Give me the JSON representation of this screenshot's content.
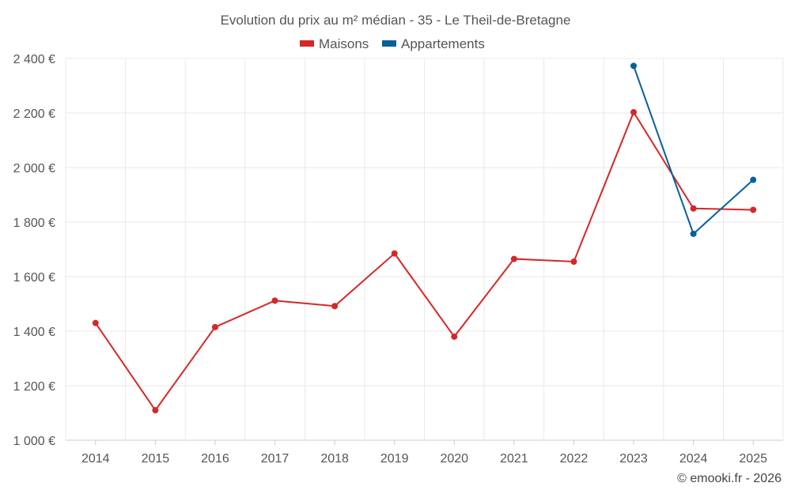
{
  "chart_data": {
    "type": "line",
    "title": "Evolution du prix au m² médian - 35 - Le Theil-de-Bretagne",
    "x": [
      "2014",
      "2015",
      "2016",
      "2017",
      "2018",
      "2019",
      "2020",
      "2021",
      "2022",
      "2023",
      "2024",
      "2025"
    ],
    "y_ticks": [
      "1 000 €",
      "1 200 €",
      "1 400 €",
      "1 600 €",
      "1 800 €",
      "2 000 €",
      "2 200 €",
      "2 400 €"
    ],
    "y_tick_values": [
      1000,
      1200,
      1400,
      1600,
      1800,
      2000,
      2200,
      2400
    ],
    "ylim": [
      1000,
      2400
    ],
    "grid": true,
    "legend_position": "top-center",
    "series": [
      {
        "name": "Maisons",
        "color": "#d62728",
        "values": [
          1430,
          1110,
          1415,
          1512,
          1492,
          1685,
          1380,
          1665,
          1655,
          2203,
          1850,
          1845
        ]
      },
      {
        "name": "Appartements",
        "color": "#08609b",
        "values": [
          null,
          null,
          null,
          null,
          null,
          null,
          null,
          null,
          null,
          2373,
          1757,
          1955
        ]
      }
    ]
  },
  "credit": "© emooki.fr - 2026"
}
